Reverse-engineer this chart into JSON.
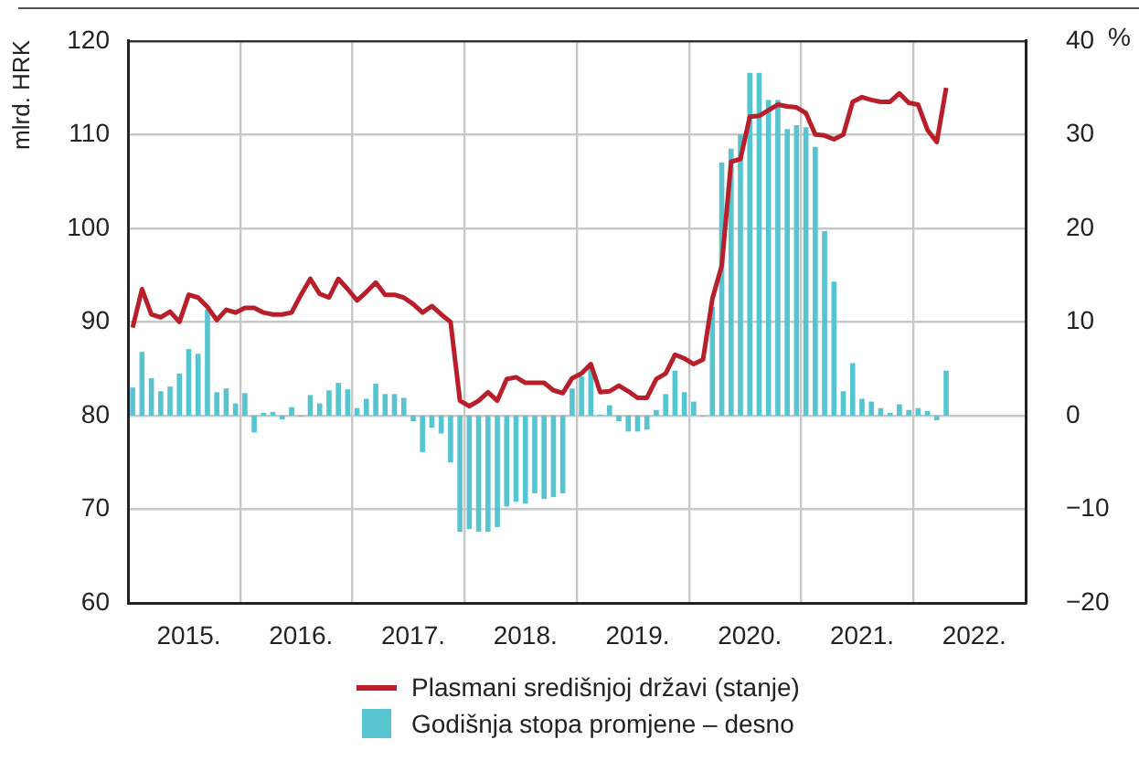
{
  "chart_data": {
    "type": "bar",
    "ylabel": "mlrd. HRK",
    "y2label": "%",
    "categories": [
      null,
      null,
      null,
      null,
      null,
      null,
      "2015.",
      null,
      null,
      null,
      null,
      null,
      null,
      null,
      null,
      null,
      null,
      null,
      "2016.",
      null,
      null,
      null,
      null,
      null,
      null,
      null,
      null,
      null,
      null,
      null,
      "2017.",
      null,
      null,
      null,
      null,
      null,
      null,
      null,
      null,
      null,
      null,
      null,
      "2018.",
      null,
      null,
      null,
      null,
      null,
      null,
      null,
      null,
      null,
      null,
      null,
      "2019.",
      null,
      null,
      null,
      null,
      null,
      null,
      null,
      null,
      null,
      null,
      null,
      "2020.",
      null,
      null,
      null,
      null,
      null,
      null,
      null,
      null,
      null,
      null,
      null,
      "2021.",
      null,
      null,
      null,
      null,
      null,
      null,
      null,
      null,
      null,
      null,
      null,
      "2022.",
      null,
      null,
      null,
      null,
      null
    ],
    "series": [
      {
        "name": "Plasmani središnjoj državi (stanje)",
        "type": "line",
        "axis": "y",
        "color": "#b81f2b",
        "values": [
          89.4,
          93.5,
          90.8,
          90.5,
          91.1,
          90,
          92.9,
          92.6,
          91.6,
          90.2,
          91.3,
          91,
          91.5,
          91.5,
          91,
          90.8,
          90.8,
          91,
          92.9,
          94.6,
          93,
          92.6,
          94.6,
          93.5,
          92.3,
          93.2,
          94.2,
          92.9,
          92.9,
          92.6,
          91.9,
          91,
          91.7,
          90.8,
          90,
          81.6,
          81,
          81.6,
          82.5,
          81.6,
          83.9,
          84.1,
          83.5,
          83.5,
          83.5,
          82.7,
          82.4,
          84,
          84.5,
          85.5,
          82.5,
          82.6,
          83.2,
          82.6,
          81.9,
          81.9,
          83.9,
          84.5,
          86.5,
          86.1,
          85.5,
          86,
          92.5,
          96,
          107.1,
          107.4,
          111.9,
          112,
          112.6,
          113.2,
          113,
          112.9,
          112.3,
          110,
          109.9,
          109.5,
          110,
          113.5,
          114,
          113.7,
          113.5,
          113.5,
          114.4,
          113.4,
          113.2,
          110.5,
          109.2,
          115,
          null,
          null,
          null,
          null,
          null,
          null,
          null,
          null
        ]
      },
      {
        "name": "Godišnja stopa promjene – desno",
        "type": "bar",
        "axis": "y2",
        "color": "#56c5d0",
        "values": [
          3.0,
          6.8,
          4.0,
          2.6,
          3.1,
          4.5,
          7.1,
          6.6,
          11.3,
          2.5,
          2.9,
          1.3,
          2.4,
          -1.8,
          0.3,
          0.4,
          -0.4,
          0.9,
          -0.1,
          2.2,
          1.3,
          2.7,
          3.5,
          2.8,
          0.8,
          1.8,
          3.4,
          2.3,
          2.3,
          1.9,
          -0.6,
          -3.9,
          -1.3,
          -1.9,
          -5.0,
          -12.4,
          -12.1,
          -12.4,
          -12.4,
          -11.9,
          -9.7,
          -9.2,
          -9.4,
          -8.3,
          -8.9,
          -8.7,
          -8.3,
          2.9,
          4.2,
          5.2,
          0.1,
          1.1,
          -0.6,
          -1.7,
          -1.7,
          -1.5,
          0.6,
          2.3,
          4.8,
          2.5,
          1.5,
          -0.1,
          11.6,
          27,
          28.5,
          30,
          36.6,
          36.6,
          33.7,
          33.7,
          30.6,
          31.0,
          30.8,
          28.7,
          19.7,
          14.3,
          2.6,
          5.6,
          1.8,
          1.5,
          0.8,
          0.3,
          1.2,
          0.6,
          0.8,
          0.5,
          -0.5,
          4.8,
          null,
          null,
          null,
          null,
          null,
          null,
          null,
          null
        ]
      }
    ],
    "ylim": [
      60,
      120
    ],
    "yticks": [
      60,
      70,
      80,
      90,
      100,
      110,
      120
    ],
    "y2lim": [
      -20,
      40
    ],
    "y2ticks": [
      -20,
      -10,
      0,
      10,
      20,
      30,
      40
    ],
    "grid": true,
    "legend": "bottom",
    "marker": "none",
    "line_style": "solid"
  }
}
